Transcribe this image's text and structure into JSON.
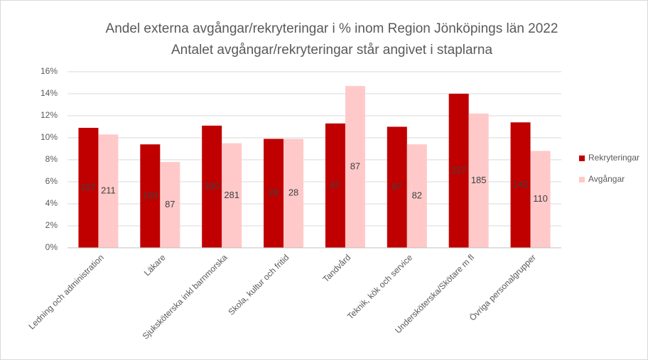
{
  "chart_data": {
    "type": "bar",
    "title": "Andel externa avgångar/rekryteringar i % inom Region Jönköpings län 2022",
    "subtitle": "Antalet avgångar/rekryteringar står angivet i staplarna",
    "categories": [
      "Ledning och administration",
      "Läkare",
      "Sjuksköterska inkl barnmorska",
      "Skola, kultur och fritid",
      "Tandvård",
      "Teknik, kök och service",
      "Undersköterska/Skötare m fl",
      "Övriga personalgrupper"
    ],
    "series": [
      {
        "name": "Rekryteringar",
        "color": "#c00000",
        "values": [
          10.9,
          9.4,
          11.1,
          9.9,
          11.3,
          11.0,
          14.0,
          11.4
        ],
        "data_labels": [
          "227",
          "100",
          "330",
          "28",
          "67",
          "87",
          "227",
          "142"
        ]
      },
      {
        "name": "Avgångar",
        "color": "#ffc9c9",
        "values": [
          10.3,
          7.8,
          9.5,
          9.9,
          14.7,
          9.4,
          12.2,
          8.8
        ],
        "data_labels": [
          "211",
          "87",
          "281",
          "28",
          "87",
          "82",
          "185",
          "110"
        ]
      }
    ],
    "ylim": [
      0,
      16
    ],
    "yticks": [
      {
        "value": 0,
        "label": "0%"
      },
      {
        "value": 2,
        "label": "2%"
      },
      {
        "value": 4,
        "label": "4%"
      },
      {
        "value": 6,
        "label": "6%"
      },
      {
        "value": 8,
        "label": "8%"
      },
      {
        "value": 10,
        "label": "10%"
      },
      {
        "value": 12,
        "label": "12%"
      },
      {
        "value": 14,
        "label": "14%"
      },
      {
        "value": 16,
        "label": "16%"
      }
    ],
    "grid": true,
    "legend": "right"
  }
}
